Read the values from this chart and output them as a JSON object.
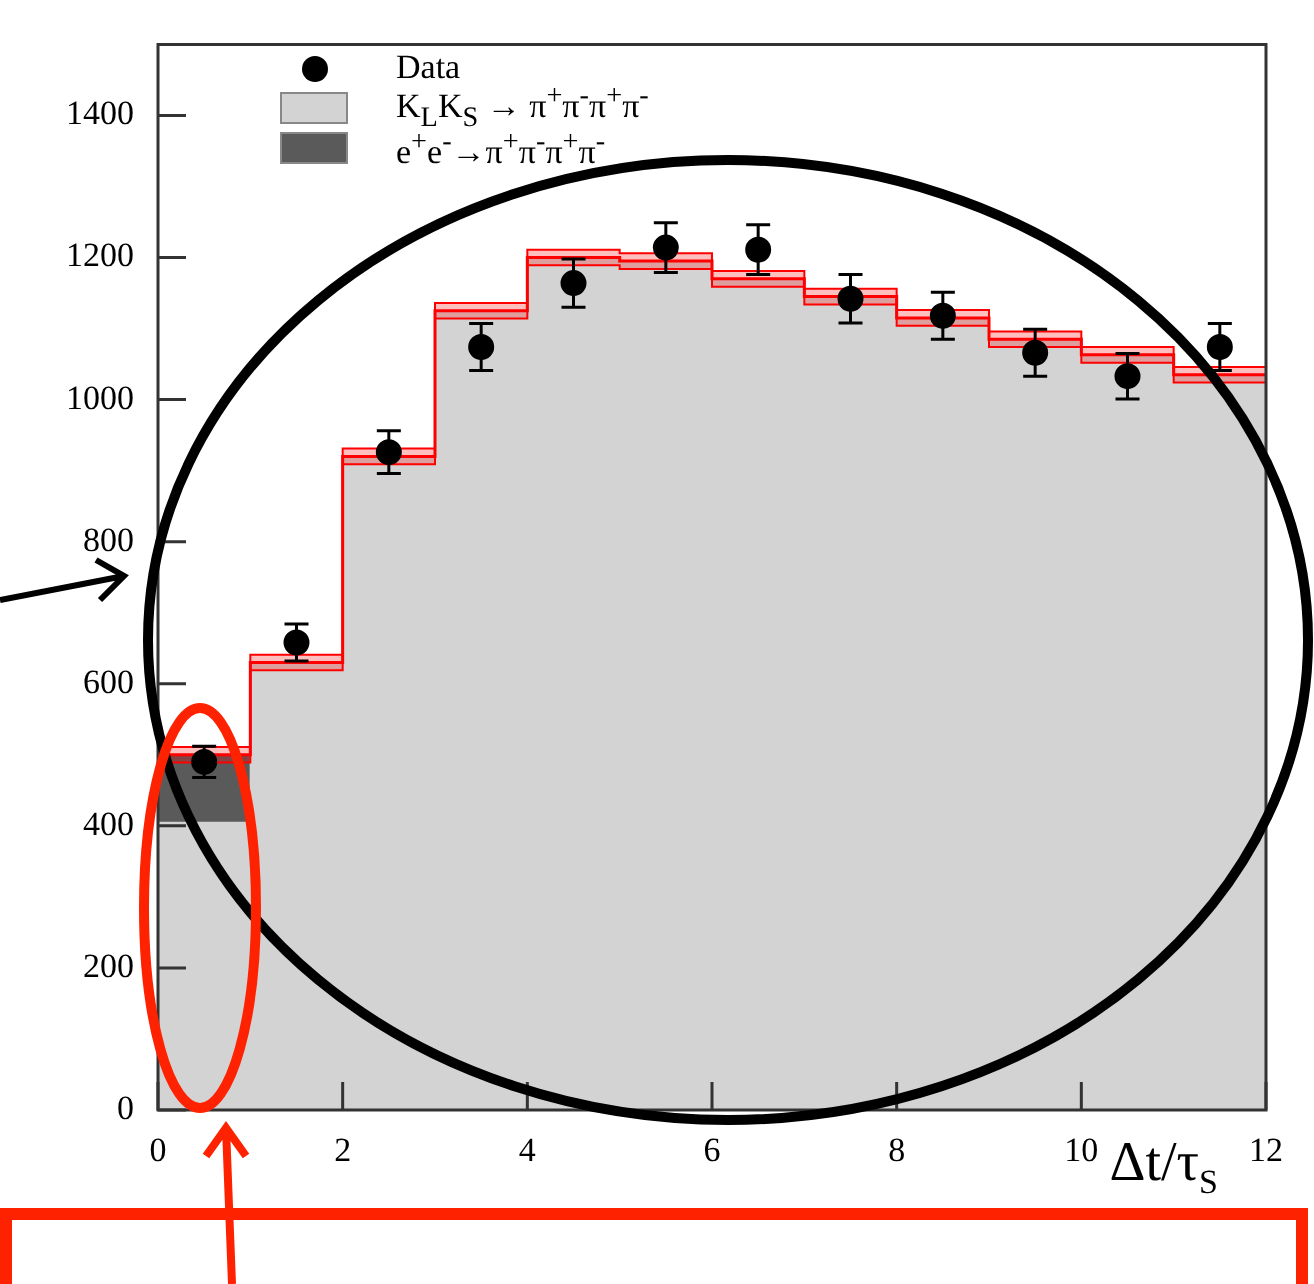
{
  "chart_data": {
    "type": "bar",
    "xlabel": "Δt/τ$_{S}$",
    "x": [
      0.5,
      1.5,
      2.5,
      3.5,
      4.5,
      5.5,
      6.5,
      7.5,
      8.5,
      9.5,
      10.5,
      11.5
    ],
    "xlim": [
      0,
      12
    ],
    "xticks": [
      0,
      2,
      4,
      6,
      8,
      10,
      12
    ],
    "ylim": [
      0,
      1500
    ],
    "yticks": [
      0,
      200,
      400,
      600,
      800,
      1000,
      1200,
      1400
    ],
    "stacked": true,
    "legend": "top left",
    "series": [
      {
        "name": "Data",
        "type": "scatter",
        "color": "#000000",
        "marker": "circle",
        "values": [
          490,
          658,
          926,
          1074,
          1164,
          1214,
          1211,
          1142,
          1118,
          1066,
          1033,
          1074
        ],
        "errors": [
          22,
          26,
          30,
          33,
          34,
          35,
          35,
          34,
          33,
          33,
          32,
          33
        ]
      },
      {
        "name": "K$_{L}$K$_{S}$ → π$^{+}$π$^{-}$π$^{+}$π$^{-}$",
        "type": "bar",
        "color": "#d3d3d3",
        "values": [
          405,
          630,
          920,
          1125,
          1200,
          1195,
          1170,
          1145,
          1115,
          1085,
          1063,
          1035
        ]
      },
      {
        "name": "e$^{+}$e$^{-}$→π$^{+}$π$^{-}$π$^{+}$π$^{-}$",
        "type": "bar",
        "color": "#5a5a5a",
        "values": [
          95,
          0,
          0,
          0,
          0,
          0,
          0,
          0,
          0,
          0,
          0,
          0
        ]
      },
      {
        "type": "step",
        "color": "#ff0000",
        "x": [
          0,
          1,
          2,
          3,
          4,
          5,
          6,
          7,
          8,
          9,
          10,
          11,
          12
        ],
        "values": [
          500,
          630,
          920,
          1125,
          1200,
          1195,
          1170,
          1145,
          1115,
          1085,
          1063,
          1035,
          1035
        ],
        "lower": [
          489,
          619,
          909,
          1114,
          1189,
          1184,
          1159,
          1134,
          1104,
          1074,
          1052,
          1024,
          1024
        ],
        "upper": [
          511,
          641,
          931,
          1136,
          1211,
          1206,
          1181,
          1156,
          1126,
          1096,
          1074,
          1046,
          1046
        ]
      }
    ]
  }
}
